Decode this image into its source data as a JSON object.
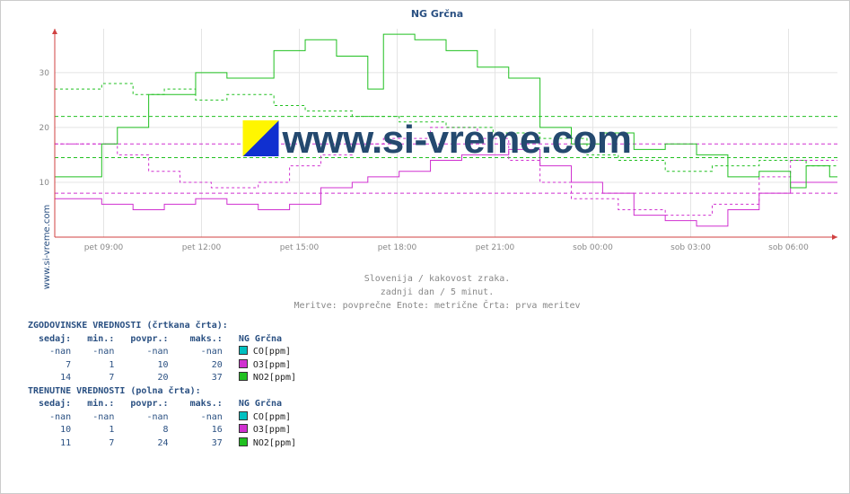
{
  "source_label": "www.si-vreme.com",
  "chart": {
    "type": "step-line",
    "title": "NG Grčna",
    "watermark_text": "www.si-vreme.com",
    "background_color": "#ffffff",
    "grid_color": "#e4e4e4",
    "axis_color": "#d04040",
    "label_color": "#888888",
    "title_color": "#2a5082",
    "title_fontsize_pt": 11,
    "label_fontsize_pt": 9,
    "ylim": [
      0,
      38
    ],
    "yticks": [
      0,
      10,
      20,
      30
    ],
    "xticks": [
      "pet 09:00",
      "pet 12:00",
      "pet 15:00",
      "pet 18:00",
      "pet 21:00",
      "sob 00:00",
      "sob 03:00",
      "sob 06:00"
    ],
    "subtitle_lines": [
      "Slovenija / kakovost zraka.",
      "zadnji dan / 5 minut.",
      "Meritve: povprečne  Enote: metrične  Črta: prva meritev"
    ],
    "hlines": [
      {
        "y": 8,
        "color": "#d030d0",
        "dash": true
      },
      {
        "y": 14.5,
        "color": "#20c020",
        "dash": true
      },
      {
        "y": 17,
        "color": "#d030d0",
        "dash": true
      },
      {
        "y": 22,
        "color": "#20c020",
        "dash": true
      }
    ],
    "series": [
      {
        "name": "CO[ppm]",
        "color": "#00c0c0",
        "solid_points": [
          [
            0,
            0
          ],
          [
            100,
            0
          ]
        ],
        "dashed_points": [
          [
            0,
            0
          ],
          [
            100,
            0
          ]
        ]
      },
      {
        "name": "O3[ppm]",
        "color": "#d030d0",
        "solid_points": [
          [
            0,
            7
          ],
          [
            6,
            7
          ],
          [
            6,
            6
          ],
          [
            10,
            6
          ],
          [
            10,
            5
          ],
          [
            14,
            5
          ],
          [
            14,
            6
          ],
          [
            18,
            6
          ],
          [
            18,
            7
          ],
          [
            22,
            7
          ],
          [
            22,
            6
          ],
          [
            26,
            6
          ],
          [
            26,
            5
          ],
          [
            30,
            5
          ],
          [
            30,
            6
          ],
          [
            34,
            6
          ],
          [
            34,
            9
          ],
          [
            38,
            9
          ],
          [
            38,
            10
          ],
          [
            40,
            10
          ],
          [
            40,
            11
          ],
          [
            44,
            11
          ],
          [
            44,
            12
          ],
          [
            48,
            12
          ],
          [
            48,
            14
          ],
          [
            52,
            14
          ],
          [
            52,
            15
          ],
          [
            58,
            15
          ],
          [
            58,
            16
          ],
          [
            62,
            16
          ],
          [
            62,
            13
          ],
          [
            66,
            13
          ],
          [
            66,
            10
          ],
          [
            70,
            10
          ],
          [
            70,
            8
          ],
          [
            74,
            8
          ],
          [
            74,
            4
          ],
          [
            78,
            4
          ],
          [
            78,
            3
          ],
          [
            82,
            3
          ],
          [
            82,
            2
          ],
          [
            86,
            2
          ],
          [
            86,
            5
          ],
          [
            90,
            5
          ],
          [
            90,
            8
          ],
          [
            94,
            8
          ],
          [
            94,
            10
          ],
          [
            100,
            10
          ]
        ],
        "dashed_points": [
          [
            0,
            17
          ],
          [
            8,
            17
          ],
          [
            8,
            15
          ],
          [
            12,
            15
          ],
          [
            12,
            12
          ],
          [
            16,
            12
          ],
          [
            16,
            10
          ],
          [
            20,
            10
          ],
          [
            20,
            9
          ],
          [
            26,
            9
          ],
          [
            26,
            10
          ],
          [
            30,
            10
          ],
          [
            30,
            13
          ],
          [
            34,
            13
          ],
          [
            34,
            15
          ],
          [
            38,
            15
          ],
          [
            38,
            17
          ],
          [
            42,
            17
          ],
          [
            42,
            18
          ],
          [
            48,
            18
          ],
          [
            48,
            20
          ],
          [
            54,
            20
          ],
          [
            54,
            18
          ],
          [
            58,
            18
          ],
          [
            58,
            14
          ],
          [
            62,
            14
          ],
          [
            62,
            10
          ],
          [
            66,
            10
          ],
          [
            66,
            7
          ],
          [
            72,
            7
          ],
          [
            72,
            5
          ],
          [
            78,
            5
          ],
          [
            78,
            4
          ],
          [
            84,
            4
          ],
          [
            84,
            6
          ],
          [
            90,
            6
          ],
          [
            90,
            11
          ],
          [
            94,
            11
          ],
          [
            94,
            14
          ],
          [
            100,
            14
          ]
        ]
      },
      {
        "name": "NO2[ppm]",
        "color": "#20c020",
        "solid_points": [
          [
            0,
            11
          ],
          [
            6,
            11
          ],
          [
            6,
            17
          ],
          [
            8,
            17
          ],
          [
            8,
            20
          ],
          [
            12,
            20
          ],
          [
            12,
            26
          ],
          [
            18,
            26
          ],
          [
            18,
            30
          ],
          [
            22,
            30
          ],
          [
            22,
            29
          ],
          [
            28,
            29
          ],
          [
            28,
            34
          ],
          [
            32,
            34
          ],
          [
            32,
            36
          ],
          [
            36,
            36
          ],
          [
            36,
            33
          ],
          [
            40,
            33
          ],
          [
            40,
            27
          ],
          [
            42,
            27
          ],
          [
            42,
            37
          ],
          [
            46,
            37
          ],
          [
            46,
            36
          ],
          [
            50,
            36
          ],
          [
            50,
            34
          ],
          [
            54,
            34
          ],
          [
            54,
            31
          ],
          [
            58,
            31
          ],
          [
            58,
            29
          ],
          [
            62,
            29
          ],
          [
            62,
            20
          ],
          [
            66,
            20
          ],
          [
            66,
            17
          ],
          [
            70,
            17
          ],
          [
            70,
            19
          ],
          [
            74,
            19
          ],
          [
            74,
            16
          ],
          [
            78,
            16
          ],
          [
            78,
            17
          ],
          [
            82,
            17
          ],
          [
            82,
            15
          ],
          [
            86,
            15
          ],
          [
            86,
            11
          ],
          [
            90,
            11
          ],
          [
            90,
            12
          ],
          [
            94,
            12
          ],
          [
            94,
            9
          ],
          [
            96,
            9
          ],
          [
            96,
            13
          ],
          [
            99,
            13
          ],
          [
            99,
            11
          ],
          [
            100,
            11
          ]
        ],
        "dashed_points": [
          [
            0,
            27
          ],
          [
            6,
            27
          ],
          [
            6,
            28
          ],
          [
            10,
            28
          ],
          [
            10,
            26
          ],
          [
            14,
            26
          ],
          [
            14,
            27
          ],
          [
            18,
            27
          ],
          [
            18,
            25
          ],
          [
            22,
            25
          ],
          [
            22,
            26
          ],
          [
            28,
            26
          ],
          [
            28,
            24
          ],
          [
            32,
            24
          ],
          [
            32,
            23
          ],
          [
            38,
            23
          ],
          [
            38,
            22
          ],
          [
            44,
            22
          ],
          [
            44,
            21
          ],
          [
            50,
            21
          ],
          [
            50,
            20
          ],
          [
            56,
            20
          ],
          [
            56,
            19
          ],
          [
            62,
            19
          ],
          [
            62,
            18
          ],
          [
            68,
            18
          ],
          [
            68,
            15
          ],
          [
            72,
            15
          ],
          [
            72,
            14
          ],
          [
            78,
            14
          ],
          [
            78,
            12
          ],
          [
            84,
            12
          ],
          [
            84,
            13
          ],
          [
            90,
            13
          ],
          [
            90,
            14
          ],
          [
            96,
            14
          ],
          [
            96,
            13
          ],
          [
            100,
            13
          ]
        ]
      }
    ]
  },
  "sections": [
    {
      "title": "ZGODOVINSKE VREDNOSTI (črtkana črta):",
      "header": [
        "sedaj:",
        "min.:",
        "povpr.:",
        "maks.:",
        "NG Grčna"
      ],
      "rows": [
        {
          "cells": [
            "-nan",
            "-nan",
            "-nan",
            "-nan"
          ],
          "swatch": "#00c0c0",
          "label": "CO[ppm]"
        },
        {
          "cells": [
            "7",
            "1",
            "10",
            "20"
          ],
          "swatch": "#d030d0",
          "label": "O3[ppm]"
        },
        {
          "cells": [
            "14",
            "7",
            "20",
            "37"
          ],
          "swatch": "#20c020",
          "label": "NO2[ppm]"
        }
      ]
    },
    {
      "title": "TRENUTNE VREDNOSTI (polna črta):",
      "header": [
        "sedaj:",
        "min.:",
        "povpr.:",
        "maks.:",
        "NG Grčna"
      ],
      "rows": [
        {
          "cells": [
            "-nan",
            "-nan",
            "-nan",
            "-nan"
          ],
          "swatch": "#00c0c0",
          "label": "CO[ppm]"
        },
        {
          "cells": [
            "10",
            "1",
            "8",
            "16"
          ],
          "swatch": "#d030d0",
          "label": "O3[ppm]"
        },
        {
          "cells": [
            "11",
            "7",
            "24",
            "37"
          ],
          "swatch": "#20c020",
          "label": "NO2[ppm]"
        }
      ]
    }
  ]
}
